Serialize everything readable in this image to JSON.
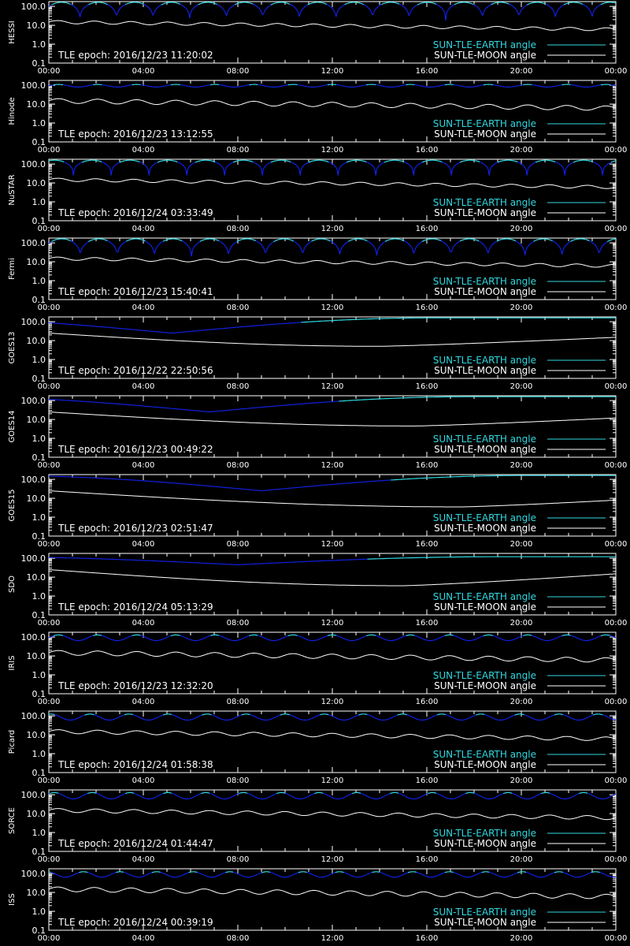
{
  "colors": {
    "background": "#000000",
    "axes": "#ffffff",
    "earth_line_dark": "#1020e0",
    "earth_line_light": "#30d8e0",
    "moon_line": "#ffffff"
  },
  "legend": {
    "earth": "SUN-TLE-EARTH angle",
    "moon": "SUN-TLE-MOON angle"
  },
  "axis": {
    "x_ticks": [
      "00:00",
      "04:00",
      "08:00",
      "12:00",
      "16:00",
      "20:00",
      "00:00"
    ],
    "y_ticks": [
      "100.0",
      "10.0",
      "1.0",
      "0.1"
    ]
  },
  "chart_data": [
    {
      "type": "line",
      "ylabel": "HESSI",
      "annotation": "TLE epoch: 2016/12/23 11:20:02",
      "x_range_hours": [
        0,
        24
      ],
      "y_scale": "log",
      "ylim": [
        0.1,
        180
      ],
      "series": [
        {
          "name": "SUN-TLE-EARTH angle",
          "shape": "arches",
          "cycles": 15.5,
          "max": 165,
          "min": 18,
          "phase": 0.15
        },
        {
          "name": "SUN-TLE-MOON angle",
          "start": 15,
          "end": 6,
          "wobble_cycles": 15.5,
          "wobble": 0.08
        }
      ]
    },
    {
      "type": "line",
      "ylabel": "Hinode",
      "annotation": "TLE epoch: 2016/12/23 13:12:55",
      "x_range_hours": [
        0,
        24
      ],
      "y_scale": "log",
      "ylim": [
        0.1,
        180
      ],
      "series": [
        {
          "name": "SUN-TLE-EARTH angle",
          "shape": "waves",
          "cycles": 14.5,
          "max": 110,
          "min": 80,
          "phase": 0.0
        },
        {
          "name": "SUN-TLE-MOON angle",
          "start": 15,
          "end": 6,
          "wobble_cycles": 14.5,
          "wobble": 0.12
        }
      ]
    },
    {
      "type": "line",
      "ylabel": "NuSTAR",
      "annotation": "TLE epoch: 2016/12/24 03:33:49",
      "x_range_hours": [
        0,
        24
      ],
      "y_scale": "log",
      "ylim": [
        0.1,
        180
      ],
      "series": [
        {
          "name": "SUN-TLE-EARTH angle",
          "shape": "arches",
          "cycles": 15.0,
          "max": 160,
          "min": 25,
          "phase": 0.35
        },
        {
          "name": "SUN-TLE-MOON angle",
          "start": 15,
          "end": 6,
          "wobble_cycles": 15.0,
          "wobble": 0.08
        }
      ]
    },
    {
      "type": "line",
      "ylabel": "Fermi",
      "annotation": "TLE epoch: 2016/12/23 15:40:41",
      "x_range_hours": [
        0,
        24
      ],
      "y_scale": "log",
      "ylim": [
        0.1,
        180
      ],
      "series": [
        {
          "name": "SUN-TLE-EARTH angle",
          "shape": "arches",
          "cycles": 15.3,
          "max": 165,
          "min": 15,
          "phase": 0.15
        },
        {
          "name": "SUN-TLE-MOON angle",
          "start": 15,
          "end": 6,
          "wobble_cycles": 15.3,
          "wobble": 0.08
        }
      ]
    },
    {
      "type": "line",
      "ylabel": "GOES13",
      "annotation": "TLE epoch: 2016/12/22 22:50:56",
      "x_range_hours": [
        0,
        24
      ],
      "y_scale": "log",
      "ylim": [
        0.1,
        180
      ],
      "series": [
        {
          "name": "SUN-TLE-EARTH angle",
          "shape": "geo",
          "max": 160,
          "min": 25,
          "t_min": 5.2
        },
        {
          "name": "SUN-TLE-MOON angle",
          "shape": "geo",
          "max": 25,
          "min": 5,
          "t_min": 14.0,
          "end": 15
        }
      ]
    },
    {
      "type": "line",
      "ylabel": "GOES14",
      "annotation": "TLE epoch: 2016/12/23 00:49:22",
      "x_range_hours": [
        0,
        24
      ],
      "y_scale": "log",
      "ylim": [
        0.1,
        180
      ],
      "series": [
        {
          "name": "SUN-TLE-EARTH angle",
          "shape": "geo",
          "max": 160,
          "min": 25,
          "t_min": 6.8
        },
        {
          "name": "SUN-TLE-MOON angle",
          "shape": "geo",
          "max": 25,
          "min": 4.5,
          "t_min": 15.5,
          "end": 12
        }
      ]
    },
    {
      "type": "line",
      "ylabel": "GOES15",
      "annotation": "TLE epoch: 2016/12/23 02:51:47",
      "x_range_hours": [
        0,
        24
      ],
      "y_scale": "log",
      "ylim": [
        0.1,
        180
      ],
      "series": [
        {
          "name": "SUN-TLE-EARTH angle",
          "shape": "geo",
          "max": 160,
          "min": 25,
          "t_min": 9.0
        },
        {
          "name": "SUN-TLE-MOON angle",
          "shape": "geo",
          "max": 25,
          "min": 3.5,
          "t_min": 17.5,
          "end": 8
        }
      ]
    },
    {
      "type": "line",
      "ylabel": "SDO",
      "annotation": "TLE epoch: 2016/12/24 05:13:29",
      "x_range_hours": [
        0,
        24
      ],
      "y_scale": "log",
      "ylim": [
        0.1,
        180
      ],
      "series": [
        {
          "name": "SUN-TLE-EARTH angle",
          "shape": "geo",
          "max": 120,
          "min": 45,
          "t_min": 8.0
        },
        {
          "name": "SUN-TLE-MOON angle",
          "shape": "geo",
          "max": 25,
          "min": 3.5,
          "t_min": 15.0,
          "end": 15
        }
      ]
    },
    {
      "type": "line",
      "ylabel": "IRIS",
      "annotation": "TLE epoch: 2016/12/23 12:32:20",
      "x_range_hours": [
        0,
        24
      ],
      "y_scale": "log",
      "ylim": [
        0.1,
        180
      ],
      "series": [
        {
          "name": "SUN-TLE-EARTH angle",
          "shape": "waves",
          "cycles": 14.5,
          "max": 130,
          "min": 65,
          "phase": 0.0
        },
        {
          "name": "SUN-TLE-MOON angle",
          "start": 15,
          "end": 6,
          "wobble_cycles": 14.5,
          "wobble": 0.12
        }
      ]
    },
    {
      "type": "line",
      "ylabel": "Picard",
      "annotation": "TLE epoch: 2016/12/24 01:58:38",
      "x_range_hours": [
        0,
        24
      ],
      "y_scale": "log",
      "ylim": [
        0.1,
        180
      ],
      "series": [
        {
          "name": "SUN-TLE-EARTH angle",
          "shape": "waves",
          "cycles": 14.5,
          "max": 125,
          "min": 60,
          "phase": 0.2
        },
        {
          "name": "SUN-TLE-MOON angle",
          "start": 15,
          "end": 6,
          "wobble_cycles": 14.5,
          "wobble": 0.1
        }
      ]
    },
    {
      "type": "line",
      "ylabel": "SORCE",
      "annotation": "TLE epoch: 2016/12/24 01:44:47",
      "x_range_hours": [
        0,
        24
      ],
      "y_scale": "log",
      "ylim": [
        0.1,
        180
      ],
      "series": [
        {
          "name": "SUN-TLE-EARTH angle",
          "shape": "waves",
          "cycles": 15.0,
          "max": 130,
          "min": 60,
          "phase": 0.1
        },
        {
          "name": "SUN-TLE-MOON angle",
          "start": 15,
          "end": 6,
          "wobble_cycles": 15.0,
          "wobble": 0.1
        }
      ]
    },
    {
      "type": "line",
      "ylabel": "ISS",
      "annotation": "TLE epoch: 2016/12/24 00:39:19",
      "x_range_hours": [
        0,
        24
      ],
      "y_scale": "log",
      "ylim": [
        0.1,
        180
      ],
      "series": [
        {
          "name": "SUN-TLE-EARTH angle",
          "shape": "waves",
          "cycles": 15.5,
          "max": 125,
          "min": 65,
          "phase": 0.3
        },
        {
          "name": "SUN-TLE-MOON angle",
          "start": 15,
          "end": 6,
          "wobble_cycles": 15.5,
          "wobble": 0.12
        }
      ]
    }
  ]
}
